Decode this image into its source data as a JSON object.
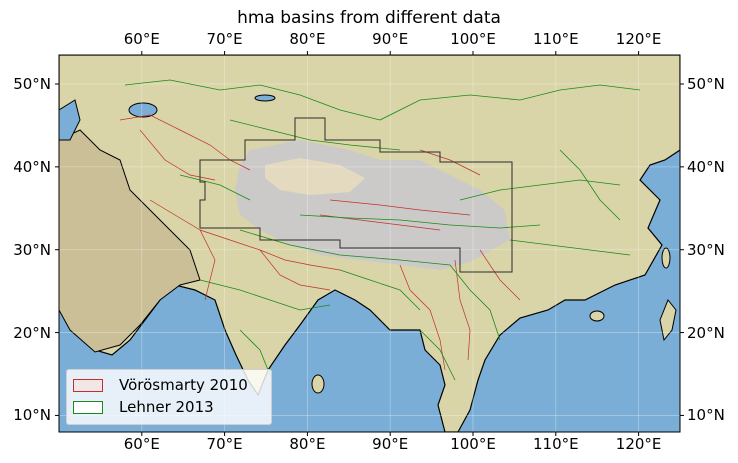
{
  "title": "hma basins from different data",
  "axes": {
    "lon_ticks": [
      "60°E",
      "70°E",
      "80°E",
      "90°E",
      "100°E",
      "110°E",
      "120°E"
    ],
    "lon_values": [
      60,
      70,
      80,
      90,
      100,
      110,
      120
    ],
    "lat_ticks": [
      "50°N",
      "40°N",
      "30°N",
      "20°N",
      "10°N"
    ],
    "lat_values": [
      50,
      40,
      30,
      20,
      10
    ],
    "lon_range": [
      50,
      125
    ],
    "lat_range": [
      8,
      53.5
    ]
  },
  "legend": {
    "items": [
      {
        "label": "Vörösmarty 2010",
        "color": "#c0302c"
      },
      {
        "label": "Lehner 2013",
        "color": "#1a8a1a"
      }
    ],
    "placement": "lower-left"
  },
  "colors": {
    "ocean": "#7aaed6",
    "land": "#d8d4a6",
    "plateau": "#c9c9cf",
    "coast": "#000000",
    "hma_outline": "#2b2b2b"
  }
}
